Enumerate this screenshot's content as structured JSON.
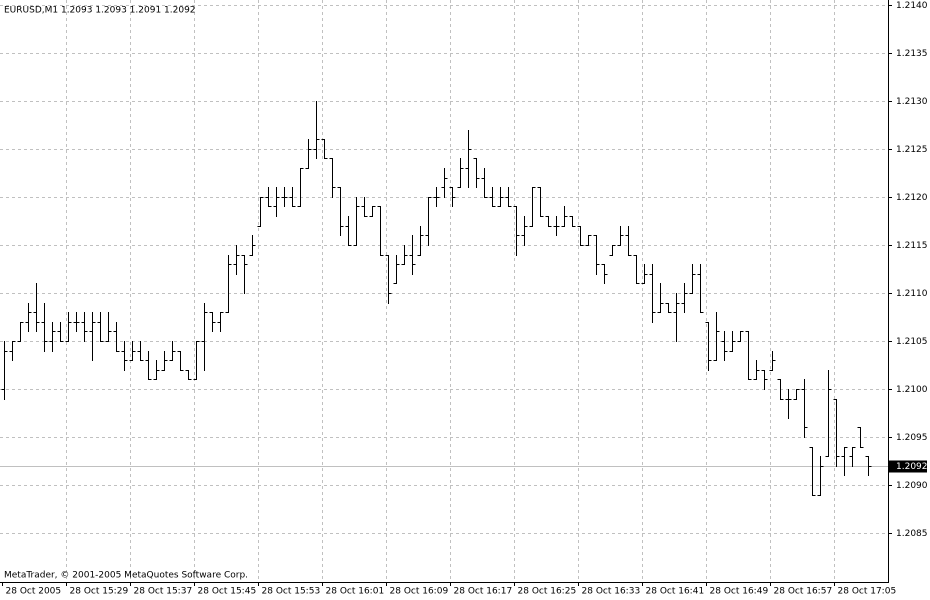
{
  "chart_data": {
    "type": "ohlc",
    "title": "EURUSD,M1  1.2093 1.2093 1.2091 1.2092",
    "footer": "MetaTrader, © 2001-2005 MetaQuotes Software Corp.",
    "color": "#000000",
    "grid": true,
    "categories": [
      "28 Oct 2005",
      null,
      null,
      null,
      null,
      null,
      null,
      null,
      "28 Oct 15:29",
      null,
      null,
      null,
      null,
      null,
      null,
      null,
      "28 Oct 15:37",
      null,
      null,
      null,
      null,
      null,
      null,
      null,
      "28 Oct 15:45",
      null,
      null,
      null,
      null,
      null,
      null,
      null,
      "28 Oct 15:53",
      null,
      null,
      null,
      null,
      null,
      null,
      null,
      "28 Oct 16:01",
      null,
      null,
      null,
      null,
      null,
      null,
      null,
      "28 Oct 16:09",
      null,
      null,
      null,
      null,
      null,
      null,
      null,
      "28 Oct 16:17",
      null,
      null,
      null,
      null,
      null,
      null,
      null,
      "28 Oct 16:25",
      null,
      null,
      null,
      null,
      null,
      null,
      null,
      "28 Oct 16:33",
      null,
      null,
      null,
      null,
      null,
      null,
      null,
      "28 Oct 16:41",
      null,
      null,
      null,
      null,
      null,
      null,
      null,
      "28 Oct 16:49",
      null,
      null,
      null,
      null,
      null,
      null,
      null,
      "28 Oct 16:57",
      null,
      null,
      null,
      null,
      null,
      null,
      null,
      "28 Oct 17:05",
      null,
      null,
      null,
      null
    ],
    "open": [
      1.21,
      1.2104,
      1.2105,
      1.2107,
      1.2108,
      1.2107,
      1.2105,
      1.2106,
      1.2105,
      1.2107,
      1.2107,
      1.2106,
      1.2107,
      1.2105,
      1.2106,
      1.2104,
      1.2103,
      1.2104,
      1.2103,
      1.2101,
      1.2102,
      1.2103,
      1.2104,
      1.2102,
      1.2101,
      1.2105,
      1.2108,
      1.2107,
      1.2108,
      1.2113,
      1.2114,
      1.2114,
      1.2117,
      1.212,
      1.2119,
      1.212,
      1.212,
      1.2119,
      1.2123,
      1.2125,
      1.2126,
      1.2124,
      1.2121,
      1.2117,
      1.2115,
      1.2119,
      1.2118,
      1.2119,
      1.2114,
      1.2111,
      1.2113,
      1.2114,
      1.2114,
      1.2116,
      1.212,
      1.2121,
      1.2121,
      1.2121,
      1.2123,
      1.2124,
      1.2122,
      1.212,
      1.2119,
      1.212,
      1.2119,
      1.2116,
      1.2117,
      1.2121,
      1.2118,
      1.2117,
      1.2117,
      1.2118,
      1.2117,
      1.2115,
      1.2116,
      1.2113,
      1.2114,
      1.2115,
      1.2116,
      1.2114,
      1.2111,
      1.2112,
      1.2108,
      1.2109,
      1.2108,
      1.2109,
      1.211,
      1.2112,
      1.2107,
      1.2103,
      1.2105,
      1.2104,
      1.2105,
      1.2106,
      1.2101,
      1.2102,
      1.2102,
      1.2101,
      1.2099,
      1.2099,
      1.21,
      1.2094,
      1.2089,
      1.2093,
      1.2099,
      1.2093,
      1.2093,
      1.2096,
      1.2093
    ],
    "high": [
      1.2105,
      1.2105,
      1.2107,
      1.2109,
      1.2111,
      1.2109,
      1.2107,
      1.2107,
      1.2108,
      1.2108,
      1.2108,
      1.2108,
      1.2108,
      1.2108,
      1.2107,
      1.2105,
      1.2105,
      1.2105,
      1.2104,
      1.2103,
      1.2104,
      1.2105,
      1.2104,
      1.2102,
      1.2105,
      1.2109,
      1.2108,
      1.2108,
      1.2114,
      1.2115,
      1.2114,
      1.2116,
      1.212,
      1.2121,
      1.2121,
      1.2121,
      1.2121,
      1.2123,
      1.2126,
      1.213,
      1.2126,
      1.2124,
      1.2121,
      1.2118,
      1.212,
      1.212,
      1.2119,
      1.2119,
      1.2114,
      1.2114,
      1.2115,
      1.2116,
      1.2117,
      1.212,
      1.2121,
      1.2123,
      1.2121,
      1.2124,
      1.2127,
      1.2124,
      1.2123,
      1.2121,
      1.2121,
      1.2121,
      1.2119,
      1.2118,
      1.2121,
      1.2121,
      1.2118,
      1.2118,
      1.2119,
      1.2118,
      1.2117,
      1.2116,
      1.2116,
      1.2113,
      1.2115,
      1.2117,
      1.2117,
      1.2114,
      1.2113,
      1.2113,
      1.2111,
      1.2109,
      1.211,
      1.2111,
      1.2113,
      1.2113,
      1.2107,
      1.2108,
      1.2106,
      1.2106,
      1.2106,
      1.2106,
      1.2103,
      1.2102,
      1.2104,
      1.2101,
      1.21,
      1.21,
      1.2101,
      1.2094,
      1.2093,
      1.2102,
      1.2099,
      1.2094,
      1.2094,
      1.2096,
      1.2093
    ],
    "low": [
      1.2099,
      1.2103,
      1.2105,
      1.2106,
      1.2106,
      1.2104,
      1.2104,
      1.2105,
      1.2105,
      1.2106,
      1.2105,
      1.2103,
      1.2105,
      1.2105,
      1.2104,
      1.2102,
      1.2103,
      1.2103,
      1.2101,
      1.2101,
      1.2102,
      1.2103,
      1.2102,
      1.2101,
      1.2101,
      1.2102,
      1.2106,
      1.2106,
      1.2108,
      1.2112,
      1.211,
      1.2114,
      1.2117,
      1.2119,
      1.2118,
      1.2119,
      1.2119,
      1.2119,
      1.2123,
      1.2124,
      1.2124,
      1.212,
      1.2116,
      1.2115,
      1.2115,
      1.2118,
      1.2118,
      1.2114,
      1.2109,
      1.2111,
      1.2113,
      1.2112,
      1.2114,
      1.2115,
      1.2119,
      1.212,
      1.2119,
      1.2121,
      1.2121,
      1.2121,
      1.212,
      1.2119,
      1.2119,
      1.2119,
      1.2114,
      1.2115,
      1.2117,
      1.2118,
      1.2117,
      1.2116,
      1.2117,
      1.2117,
      1.2115,
      1.2115,
      1.2112,
      1.2111,
      1.2114,
      1.2115,
      1.2114,
      1.2111,
      1.2111,
      1.2107,
      1.2108,
      1.2108,
      1.2105,
      1.2108,
      1.211,
      1.2108,
      1.2102,
      1.2103,
      1.2103,
      1.2104,
      1.2105,
      1.2101,
      1.2101,
      1.21,
      1.2102,
      1.2099,
      1.2097,
      1.2099,
      1.2095,
      1.2089,
      1.2089,
      1.2093,
      1.2092,
      1.2091,
      1.2092,
      1.2094,
      1.2091
    ],
    "close": [
      1.2104,
      1.2105,
      1.2107,
      1.2108,
      1.2107,
      1.2105,
      1.2106,
      1.2105,
      1.2107,
      1.2107,
      1.2106,
      1.2107,
      1.2105,
      1.2106,
      1.2104,
      1.2103,
      1.2104,
      1.2103,
      1.2101,
      1.2102,
      1.2103,
      1.2104,
      1.2102,
      1.2101,
      1.2105,
      1.2108,
      1.2107,
      1.2108,
      1.2113,
      1.2114,
      1.2113,
      1.2115,
      1.212,
      1.2119,
      1.212,
      1.212,
      1.2119,
      1.2123,
      1.2125,
      1.2126,
      1.2124,
      1.2121,
      1.2117,
      1.2115,
      1.2119,
      1.2118,
      1.2119,
      1.2114,
      1.211,
      1.2113,
      1.2114,
      1.2113,
      1.2116,
      1.212,
      1.212,
      1.2122,
      1.212,
      1.2123,
      1.2125,
      1.2122,
      1.212,
      1.2119,
      1.212,
      1.2119,
      1.2116,
      1.2117,
      1.2121,
      1.2118,
      1.2117,
      1.2117,
      1.2118,
      1.2117,
      1.2115,
      1.2116,
      1.2113,
      1.2112,
      1.2115,
      1.2116,
      1.2114,
      1.2111,
      1.2112,
      1.2108,
      1.2109,
      1.2108,
      1.2109,
      1.211,
      1.2112,
      1.2108,
      1.2103,
      1.2106,
      1.2104,
      1.2105,
      1.2106,
      1.2101,
      1.2102,
      1.2101,
      1.2103,
      1.2099,
      1.2099,
      1.21,
      1.2096,
      1.2089,
      1.2092,
      1.21,
      1.2093,
      1.2094,
      1.2094,
      1.2094,
      1.2092
    ],
    "ylim": [
      1.20799,
      1.21405
    ],
    "yticks": [
      {
        "value": 1.214,
        "label": "1.2140"
      },
      {
        "value": 1.2135,
        "label": "1.2135"
      },
      {
        "value": 1.213,
        "label": "1.2130"
      },
      {
        "value": 1.2125,
        "label": "1.2125"
      },
      {
        "value": 1.212,
        "label": "1.2120"
      },
      {
        "value": 1.2115,
        "label": "1.2115"
      },
      {
        "value": 1.211,
        "label": "1.2110"
      },
      {
        "value": 1.2105,
        "label": "1.2105"
      },
      {
        "value": 1.21,
        "label": "1.2100"
      },
      {
        "value": 1.2095,
        "label": "1.2095"
      },
      {
        "value": 1.209,
        "label": "1.2090"
      },
      {
        "value": 1.2085,
        "label": "1.2085"
      }
    ],
    "current_price": {
      "value": 1.2092,
      "label": "1.2092"
    }
  }
}
